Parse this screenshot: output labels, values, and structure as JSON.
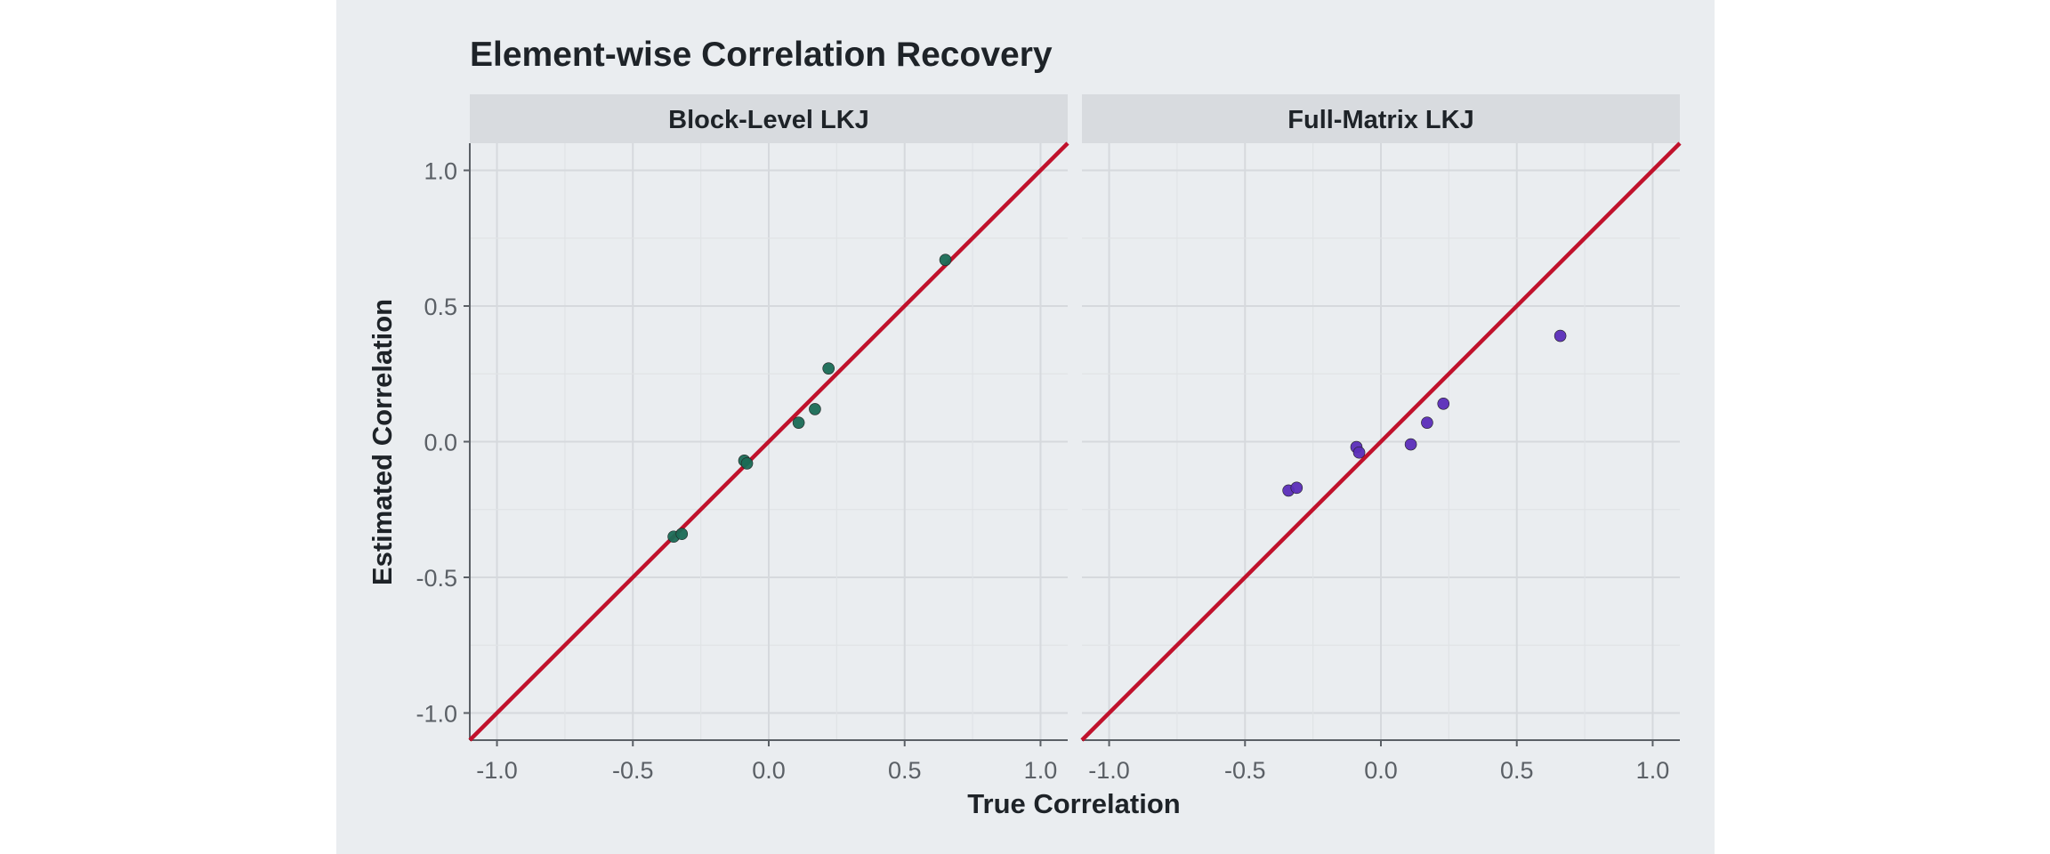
{
  "chart_data": {
    "type": "scatter",
    "title": "Element-wise Correlation Recovery",
    "xlabel": "True Correlation",
    "ylabel": "Estimated Correlation",
    "xlim": [
      -1.1,
      1.1
    ],
    "ylim": [
      -1.1,
      1.1
    ],
    "xticks": [
      -1.0,
      -0.5,
      0.0,
      0.5,
      1.0
    ],
    "yticks": [
      -1.0,
      -0.5,
      0.0,
      0.5,
      1.0
    ],
    "xtick_labels": [
      "-1.0",
      "-0.5",
      "0.0",
      "0.5",
      "1.0"
    ],
    "ytick_labels": [
      "-1.0",
      "-0.5",
      "0.0",
      "0.5",
      "1.0"
    ],
    "grid": true,
    "reference_line": "y = x",
    "reference_color": "#c0122c",
    "panels": [
      {
        "name": "Block-Level LKJ",
        "color": "#1a6b55",
        "points": [
          {
            "x": -0.35,
            "y": -0.35
          },
          {
            "x": -0.32,
            "y": -0.34
          },
          {
            "x": -0.09,
            "y": -0.07
          },
          {
            "x": -0.08,
            "y": -0.08
          },
          {
            "x": 0.11,
            "y": 0.07
          },
          {
            "x": 0.17,
            "y": 0.12
          },
          {
            "x": 0.22,
            "y": 0.27
          },
          {
            "x": 0.65,
            "y": 0.67
          }
        ]
      },
      {
        "name": "Full-Matrix LKJ",
        "color": "#5b2db8",
        "points": [
          {
            "x": -0.34,
            "y": -0.18
          },
          {
            "x": -0.31,
            "y": -0.17
          },
          {
            "x": -0.09,
            "y": -0.02
          },
          {
            "x": -0.08,
            "y": -0.04
          },
          {
            "x": 0.11,
            "y": -0.01
          },
          {
            "x": 0.17,
            "y": 0.07
          },
          {
            "x": 0.23,
            "y": 0.14
          },
          {
            "x": 0.66,
            "y": 0.39
          }
        ]
      }
    ]
  }
}
